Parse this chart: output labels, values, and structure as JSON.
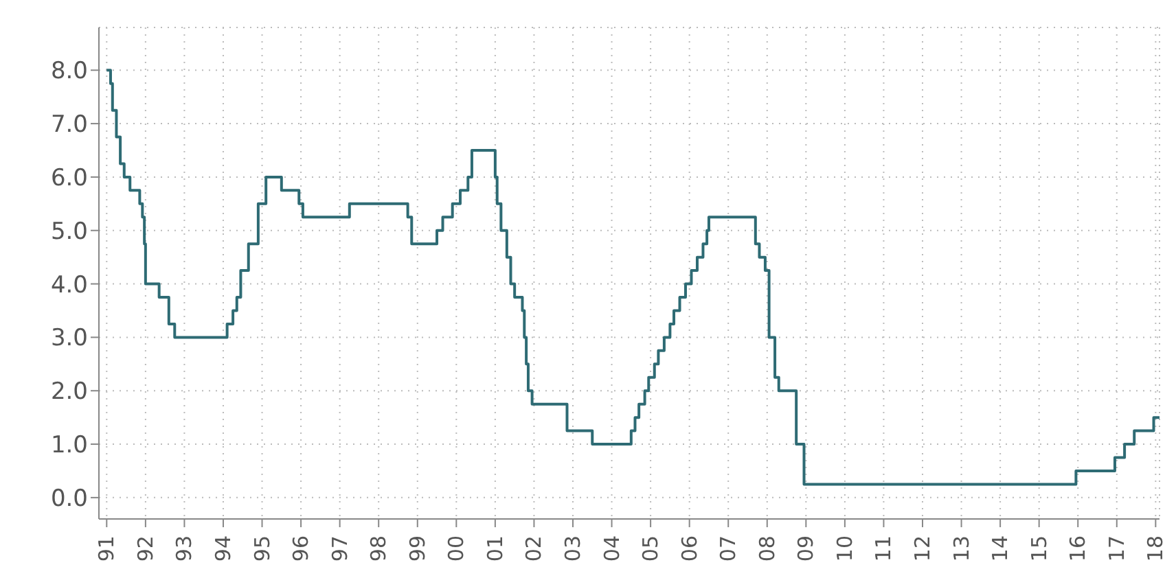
{
  "chart_data": {
    "type": "step",
    "x": [
      1991.0,
      1991.1,
      1991.15,
      1991.25,
      1991.35,
      1991.45,
      1991.6,
      1991.85,
      1991.92,
      1991.97,
      1992.0,
      1992.35,
      1992.6,
      1992.75,
      1994.1,
      1994.25,
      1994.35,
      1994.45,
      1994.65,
      1994.9,
      1995.1,
      1995.5,
      1995.95,
      1996.05,
      1997.25,
      1998.75,
      1998.85,
      1999.5,
      1999.65,
      1999.9,
      2000.1,
      2000.3,
      2000.4,
      2001.0,
      2001.05,
      2001.15,
      2001.3,
      2001.4,
      2001.5,
      2001.7,
      2001.75,
      2001.8,
      2001.85,
      2001.95,
      2002.85,
      2003.5,
      2004.5,
      2004.6,
      2004.7,
      2004.85,
      2004.95,
      2005.1,
      2005.2,
      2005.35,
      2005.5,
      2005.6,
      2005.75,
      2005.9,
      2006.05,
      2006.2,
      2006.35,
      2006.45,
      2006.5,
      2007.7,
      2007.8,
      2007.95,
      2008.05,
      2008.2,
      2008.3,
      2008.75,
      2008.95,
      2015.95,
      2016.95,
      2017.2,
      2017.45,
      2017.95,
      2018.1
    ],
    "series": [
      {
        "color": "#2e6b74",
        "values": [
          8.0,
          7.75,
          7.25,
          6.75,
          6.25,
          6.0,
          5.75,
          5.5,
          5.25,
          4.75,
          4.0,
          3.75,
          3.25,
          3.0,
          3.25,
          3.5,
          3.75,
          4.25,
          4.75,
          5.5,
          6.0,
          5.75,
          5.5,
          5.25,
          5.5,
          5.25,
          4.75,
          5.0,
          5.25,
          5.5,
          5.75,
          6.0,
          6.5,
          6.0,
          5.5,
          5.0,
          4.5,
          4.0,
          3.75,
          3.5,
          3.0,
          2.5,
          2.0,
          1.75,
          1.25,
          1.0,
          1.25,
          1.5,
          1.75,
          2.0,
          2.25,
          2.5,
          2.75,
          3.0,
          3.25,
          3.5,
          3.75,
          4.0,
          4.25,
          4.5,
          4.75,
          5.0,
          5.25,
          4.75,
          4.5,
          4.25,
          3.0,
          2.25,
          2.0,
          1.0,
          0.25,
          0.5,
          0.75,
          1.0,
          1.25,
          1.5,
          1.5
        ]
      }
    ],
    "xlim": [
      1990.8,
      2018.1
    ],
    "xticks": [
      {
        "value": 1991,
        "label": "91"
      },
      {
        "value": 1992,
        "label": "92"
      },
      {
        "value": 1993,
        "label": "93"
      },
      {
        "value": 1994,
        "label": "94"
      },
      {
        "value": 1995,
        "label": "95"
      },
      {
        "value": 1996,
        "label": "96"
      },
      {
        "value": 1997,
        "label": "97"
      },
      {
        "value": 1998,
        "label": "98"
      },
      {
        "value": 1999,
        "label": "99"
      },
      {
        "value": 2000,
        "label": "00"
      },
      {
        "value": 2001,
        "label": "01"
      },
      {
        "value": 2002,
        "label": "02"
      },
      {
        "value": 2003,
        "label": "03"
      },
      {
        "value": 2004,
        "label": "04"
      },
      {
        "value": 2005,
        "label": "05"
      },
      {
        "value": 2006,
        "label": "06"
      },
      {
        "value": 2007,
        "label": "07"
      },
      {
        "value": 2008,
        "label": "08"
      },
      {
        "value": 2009,
        "label": "09"
      },
      {
        "value": 2010,
        "label": "10"
      },
      {
        "value": 2011,
        "label": "11"
      },
      {
        "value": 2012,
        "label": "12"
      },
      {
        "value": 2013,
        "label": "13"
      },
      {
        "value": 2014,
        "label": "14"
      },
      {
        "value": 2015,
        "label": "15"
      },
      {
        "value": 2016,
        "label": "16"
      },
      {
        "value": 2017,
        "label": "17"
      },
      {
        "value": 2018,
        "label": "18"
      }
    ],
    "ylim": [
      -0.4,
      8.8
    ],
    "yticks": [
      {
        "value": 0,
        "label": "0.0"
      },
      {
        "value": 1,
        "label": "1.0"
      },
      {
        "value": 2,
        "label": "2.0"
      },
      {
        "value": 3,
        "label": "3.0"
      },
      {
        "value": 4,
        "label": "4.0"
      },
      {
        "value": 5,
        "label": "5.0"
      },
      {
        "value": 6,
        "label": "6.0"
      },
      {
        "value": 7,
        "label": "7.0"
      },
      {
        "value": 8,
        "label": "8.0"
      }
    ],
    "grid": true,
    "marker": "none",
    "line_style": "solid",
    "legend": false
  }
}
